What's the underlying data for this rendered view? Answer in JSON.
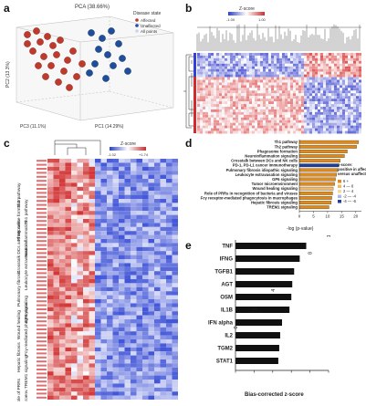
{
  "panels": {
    "a": {
      "label": "a",
      "title": "PCA (38.66%)",
      "legend_title": "Disease state",
      "legend": [
        {
          "name": "Affected",
          "color": "#c0392b"
        },
        {
          "name": "Unaffected",
          "color": "#1f4e9c"
        },
        {
          "name": "All points",
          "color": "#c9d6ec"
        }
      ],
      "axes": {
        "pc1": "PC1 (14.29%)",
        "pc2": "PC2 (13.3%)",
        "pc3": "PC3 (11.1%)"
      }
    },
    "b": {
      "label": "b",
      "scale_title": "Z-score",
      "scale_min": "-1.00",
      "scale_max": "1.00"
    },
    "c": {
      "label": "c",
      "scale_title": "Z-score",
      "scale_min": "-1.02",
      "scale_max": "+1.74",
      "pathways": [
        "Th2 pathway",
        "Th1 pathway",
        "Phagosome formation",
        "Neuroinflammation",
        "Crosstalk DCs and NK cells",
        "Leukocyte extravasation",
        "Pulmonary fibrosis",
        "GP6 signaling",
        "Wound healing",
        "Fcγ-mediated phagocytosis",
        "Hepatic fibrosis",
        "TREM1 signaling",
        "Role of PRRs",
        "Tumor microenv."
      ]
    },
    "d": {
      "label": "d",
      "xlabel": "-log (p-value)",
      "x_ticks": [
        "0",
        "5",
        "10",
        "15",
        "20"
      ],
      "legend_title": "z-score:\npositive in affected\nversus unaffected",
      "legend": [
        {
          "name": "6 +",
          "color": "#e08a1a"
        },
        {
          "name": "4 — 6",
          "color": "#f0b866"
        },
        {
          "name": "2 — 4",
          "color": "#f6d7a6"
        },
        {
          "name": "-2 — -4",
          "color": "#a9bce0"
        },
        {
          "name": "-4 — -6",
          "color": "#1f3f9a"
        }
      ]
    },
    "e": {
      "label": "e",
      "xlabel": "Bias-corrected z-score",
      "x_ticks": [
        "0",
        "2",
        "4",
        "6",
        "8",
        "10"
      ]
    }
  },
  "chart_data": [
    {
      "type": "bar",
      "panel": "d",
      "categories": [
        "Th1 pathway",
        "Th2 pathway",
        "Phagosome formation",
        "Neuroinflammation signaling",
        "Crosstalk between DCs and NK cells",
        "PD-1, PD-L1 cancer immunotherapy",
        "Pulmonary fibrosis idiopathic signaling",
        "Leukocyte extravasation signaling",
        "GP6 signaling",
        "Tumor microenvironment",
        "Wound healing signaling",
        "Role of PRRs in recognition of bacteria and viruses",
        "Fcγ receptor-mediated phagocytosis in macrophages",
        "Hepatic fibrosis signaling",
        "TREM1 signaling"
      ],
      "values": [
        21,
        20.3,
        17,
        16,
        14.5,
        14,
        13.5,
        13.2,
        12.8,
        12.5,
        12,
        11.8,
        11.5,
        11.3,
        10.5
      ],
      "xlim": [
        0,
        22
      ],
      "xlabel": "-log (p-value)"
    },
    {
      "type": "bar",
      "panel": "e",
      "categories": [
        "TNF",
        "IFNG",
        "TGFB1",
        "AGT",
        "OSM",
        "IL1B",
        "IFN alpha",
        "IL2",
        "TGM2",
        "STAT1"
      ],
      "values": [
        7.6,
        6.9,
        6.3,
        6.1,
        6.0,
        5.8,
        5.0,
        4.8,
        4.7,
        4.6
      ],
      "xlim": [
        0,
        10
      ],
      "xlabel": "Bias-corrected z-score"
    }
  ]
}
